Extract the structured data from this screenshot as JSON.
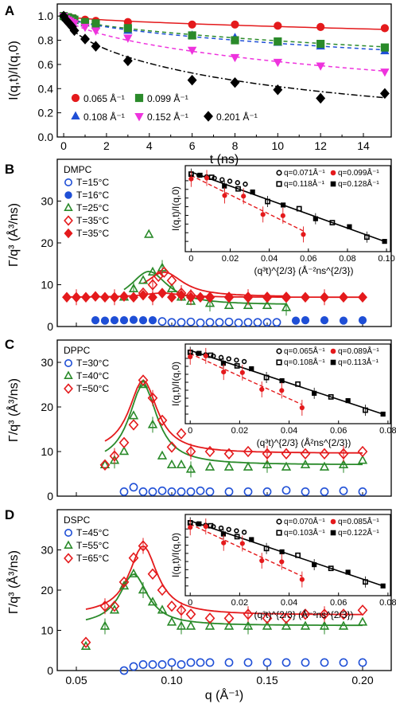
{
  "chart_data": [
    {
      "id": "A",
      "panel_label": "A",
      "type": "scatter",
      "xlabel": "t (ns)",
      "ylabel": "I(q,t)/I(q,0)",
      "xlim": [
        -0.3,
        15.3
      ],
      "ylim": [
        0,
        1.1
      ],
      "xticks": [
        0,
        2,
        4,
        6,
        8,
        10,
        12,
        14
      ],
      "yticks": [
        0,
        0.2,
        0.4,
        0.6,
        0.8,
        1.0
      ],
      "legend_placement": "bottom-left",
      "series": [
        {
          "name": "0.065 Å⁻¹",
          "color": "#e41a1c",
          "marker": "circle",
          "x": [
            0,
            0.1,
            0.2,
            0.3,
            0.4,
            0.5,
            1,
            1.5,
            3,
            6,
            8,
            10,
            12,
            15
          ],
          "y": [
            1.0,
            0.99,
            0.99,
            0.99,
            0.98,
            0.98,
            0.97,
            0.96,
            0.95,
            0.93,
            0.93,
            0.92,
            0.91,
            0.9
          ],
          "fit": "0.065 Å⁻¹"
        },
        {
          "name": "0.108 Å⁻¹",
          "color": "#1f4fd6",
          "marker": "triangle",
          "x": [
            0,
            0.1,
            0.2,
            0.3,
            0.4,
            0.5,
            1,
            1.5,
            3,
            6,
            8,
            10,
            12,
            15
          ],
          "y": [
            1.0,
            0.99,
            0.98,
            0.97,
            0.96,
            0.96,
            0.94,
            0.92,
            0.88,
            0.84,
            0.82,
            0.78,
            0.75,
            0.71
          ],
          "fit": "0.108 Å⁻¹"
        },
        {
          "name": "0.099 Å⁻¹",
          "color": "#2a8a2a",
          "marker": "square",
          "x": [
            0,
            0.1,
            0.2,
            0.3,
            0.4,
            0.5,
            1,
            1.5,
            3,
            6,
            8,
            10,
            12,
            15
          ],
          "y": [
            1.0,
            0.99,
            0.99,
            0.98,
            0.98,
            0.97,
            0.95,
            0.94,
            0.9,
            0.84,
            0.8,
            0.79,
            0.77,
            0.74
          ],
          "fit": "0.099 Å⁻¹"
        },
        {
          "name": "0.152 Å⁻¹",
          "color": "#ee33dd",
          "marker": "triangle-down",
          "x": [
            0,
            0.1,
            0.2,
            0.3,
            0.4,
            0.5,
            1,
            1.5,
            3,
            6,
            8,
            10,
            12,
            15
          ],
          "y": [
            1.0,
            0.98,
            0.97,
            0.96,
            0.95,
            0.94,
            0.91,
            0.88,
            0.82,
            0.72,
            0.66,
            0.62,
            0.59,
            0.54
          ],
          "fit": "0.152 Å⁻¹"
        },
        {
          "name": "0.201 Å⁻¹",
          "color": "#000000",
          "marker": "diamond",
          "x": [
            0,
            0.1,
            0.2,
            0.3,
            0.4,
            0.5,
            1,
            1.5,
            3,
            6,
            8,
            10,
            12,
            15
          ],
          "y": [
            1.0,
            0.97,
            0.95,
            0.93,
            0.91,
            0.88,
            0.81,
            0.75,
            0.63,
            0.47,
            0.45,
            0.39,
            0.32,
            0.36
          ],
          "fit": "0.201 Å⁻¹"
        }
      ],
      "fits": [
        {
          "series": "0.065 Å⁻¹",
          "color": "#e41a1c",
          "dash": "solid",
          "y": [
            1.0,
            0.9999,
            0.89
          ]
        },
        {
          "series": "0.099 Å⁻¹",
          "color": "#2a8a2a",
          "dash": "dash",
          "y": [
            1.0,
            0.9999,
            0.745
          ]
        },
        {
          "series": "0.108 Å⁻¹",
          "color": "#1f4fd6",
          "dash": "dash",
          "y": [
            1.0,
            0.9999,
            0.72
          ]
        },
        {
          "series": "0.152 Å⁻¹",
          "color": "#ee33dd",
          "dash": "dash",
          "y": [
            1.0,
            0.9999,
            0.545
          ]
        },
        {
          "series": "0.201 Å⁻¹",
          "color": "#000000",
          "dash": "dashdot",
          "y": [
            1.0,
            0.9999,
            0.325
          ]
        }
      ]
    },
    {
      "id": "B",
      "panel_label": "B",
      "title": "DMPC",
      "type": "scatter",
      "ylabel": "Γ/q³ (Å³/ns)",
      "xlim": [
        0.04,
        0.215
      ],
      "ylim": [
        0,
        40
      ],
      "yticks": [
        0,
        10,
        20,
        30
      ],
      "legend_placement": "top-left",
      "series": [
        {
          "name": "T=15°C",
          "color": "#1f4fd6",
          "marker": "circle-open",
          "x": [
            0.095,
            0.1,
            0.105,
            0.11,
            0.115,
            0.12,
            0.125,
            0.13,
            0.135,
            0.14,
            0.145,
            0.15,
            0.155
          ],
          "y": [
            1.2,
            1.0,
            1.0,
            1.1,
            0.9,
            1.0,
            1.0,
            1.1,
            0.9,
            1.0,
            1.0,
            1.0,
            1.0
          ]
        },
        {
          "name": "T=16°C",
          "color": "#1f4fd6",
          "marker": "circle",
          "x": [
            0.06,
            0.065,
            0.07,
            0.075,
            0.08,
            0.085,
            0.09,
            0.165,
            0.17,
            0.18,
            0.19,
            0.2
          ],
          "y": [
            1.5,
            1.4,
            1.5,
            1.5,
            1.6,
            1.5,
            1.5,
            1.4,
            1.5,
            1.5,
            1.4,
            1.5
          ]
        },
        {
          "name": "T=25°C",
          "color": "#2a8a2a",
          "marker": "triangle-open",
          "x": [
            0.075,
            0.08,
            0.085,
            0.088,
            0.09,
            0.095,
            0.1,
            0.105,
            0.11,
            0.12,
            0.13,
            0.14,
            0.15,
            0.16
          ],
          "y": [
            7,
            9,
            11,
            22,
            13,
            14,
            9,
            7,
            6,
            5.5,
            5,
            5,
            5,
            4.5
          ]
        },
        {
          "name": "T=35°C",
          "color": "#e41a1c",
          "marker": "diamond-open",
          "x": [
            0.085,
            0.09,
            0.093,
            0.096,
            0.1,
            0.105,
            0.11,
            0.12,
            0.13,
            0.14,
            0.15,
            0.16
          ],
          "y": [
            8,
            10,
            12,
            13,
            11,
            8,
            7.5,
            7,
            7,
            7,
            7,
            7
          ]
        },
        {
          "name": "T=35°C",
          "color": "#e41a1c",
          "marker": "diamond",
          "x": [
            0.045,
            0.05,
            0.055,
            0.06,
            0.065,
            0.07,
            0.075,
            0.08,
            0.085,
            0.09,
            0.095,
            0.1,
            0.105,
            0.11,
            0.115,
            0.12,
            0.13,
            0.14,
            0.15,
            0.16,
            0.17,
            0.18,
            0.19,
            0.2
          ],
          "y": [
            7,
            7,
            7,
            7.2,
            7,
            7,
            7.2,
            7,
            7.5,
            7,
            8,
            7,
            7.5,
            7,
            7,
            7,
            7,
            7,
            7,
            7,
            7,
            7,
            7,
            7
          ]
        }
      ],
      "inset": {
        "xlabel": "(q³t)^{2/3} (Å⁻²ns^{2/3})",
        "ylabel": "I(q,t)/I(q,0)",
        "xlim": [
          -0.003,
          0.102
        ],
        "xticks": [
          0,
          0.02,
          0.04,
          0.06,
          0.08,
          0.1
        ],
        "xtick_labels": [
          "0",
          "0.02",
          "0.04",
          "0.06",
          "0.08",
          "0.10"
        ],
        "legend": [
          {
            "name": "q=0.071Å⁻¹",
            "color": "#000000",
            "marker": "circle-open"
          },
          {
            "name": "q=0.099Å⁻¹",
            "color": "#e41a1c",
            "marker": "circle"
          },
          {
            "name": "q=0.118Å⁻¹",
            "color": "#000000",
            "marker": "square-open"
          },
          {
            "name": "q=0.128Å⁻¹",
            "color": "#000000",
            "marker": "square"
          }
        ]
      }
    },
    {
      "id": "C",
      "panel_label": "C",
      "title": "DPPC",
      "type": "scatter",
      "ylabel": "Γ/q³ (Å³/ns)",
      "xlim": [
        0.04,
        0.215
      ],
      "ylim": [
        0,
        35
      ],
      "yticks": [
        0,
        10,
        20,
        30
      ],
      "legend_placement": "top-left",
      "series": [
        {
          "name": "T=30°C",
          "color": "#1f4fd6",
          "marker": "circle-open",
          "x": [
            0.075,
            0.08,
            0.085,
            0.09,
            0.095,
            0.1,
            0.105,
            0.11,
            0.115,
            0.12,
            0.13,
            0.14,
            0.15,
            0.16,
            0.17,
            0.18,
            0.19,
            0.2
          ],
          "y": [
            1,
            2,
            1,
            1,
            1.2,
            1,
            1,
            1,
            1.2,
            1,
            1,
            1,
            1,
            1.3,
            1,
            1,
            1.2,
            1
          ]
        },
        {
          "name": "T=40°C",
          "color": "#2a8a2a",
          "marker": "triangle-open",
          "x": [
            0.065,
            0.07,
            0.075,
            0.08,
            0.085,
            0.09,
            0.095,
            0.1,
            0.105,
            0.11,
            0.12,
            0.13,
            0.14,
            0.15,
            0.16,
            0.17,
            0.18,
            0.19,
            0.2
          ],
          "y": [
            7,
            8,
            10,
            18,
            25,
            16,
            9,
            7,
            7,
            6,
            6.5,
            6.5,
            6.5,
            7,
            6.5,
            7,
            6.5,
            7,
            8
          ]
        },
        {
          "name": "T=50°C",
          "color": "#e41a1c",
          "marker": "diamond-open",
          "x": [
            0.065,
            0.07,
            0.075,
            0.08,
            0.085,
            0.09,
            0.095,
            0.1,
            0.105,
            0.11,
            0.12,
            0.13,
            0.14,
            0.15,
            0.16,
            0.17,
            0.18,
            0.19,
            0.2
          ],
          "y": [
            7,
            9,
            12,
            16,
            26,
            22,
            17,
            11,
            14,
            10,
            10,
            9.5,
            10,
            9.5,
            9.5,
            9.5,
            9.5,
            9.5,
            10
          ]
        }
      ],
      "inset": {
        "xlabel": "(q³t)^{2/3} (Å²ns^{2/3})",
        "ylabel": "I(q,t)/I(q,0)",
        "xlim": [
          -0.002,
          0.081
        ],
        "xticks": [
          0,
          0.02,
          0.04,
          0.06,
          0.08
        ],
        "xtick_labels": [
          "0",
          "0.02",
          "0.04",
          "0.06",
          "0.08"
        ],
        "legend": [
          {
            "name": "q=0.065Å⁻¹",
            "color": "#000000",
            "marker": "circle-open"
          },
          {
            "name": "q=0.089Å⁻¹",
            "color": "#e41a1c",
            "marker": "circle"
          },
          {
            "name": "q=0.108Å⁻¹",
            "color": "#000000",
            "marker": "square-open"
          },
          {
            "name": "q=0.113Å⁻¹",
            "color": "#000000",
            "marker": "square"
          }
        ]
      }
    },
    {
      "id": "D",
      "panel_label": "D",
      "title": "DSPC",
      "type": "scatter",
      "xlabel": "q (Å⁻¹)",
      "ylabel": "Γ/q³ (Å³/ns)",
      "xlim": [
        0.04,
        0.215
      ],
      "ylim": [
        0,
        40
      ],
      "xticks": [
        0.05,
        0.1,
        0.15,
        0.2
      ],
      "xtick_labels": [
        "0.05",
        "0.10",
        "0.15",
        "0.20"
      ],
      "yticks": [
        0,
        10,
        20,
        30
      ],
      "legend_placement": "top-left",
      "series": [
        {
          "name": "T=45°C",
          "color": "#1f4fd6",
          "marker": "circle-open",
          "x": [
            0.075,
            0.08,
            0.085,
            0.09,
            0.095,
            0.1,
            0.105,
            0.11,
            0.115,
            0.12,
            0.13,
            0.14,
            0.15,
            0.16,
            0.17,
            0.18,
            0.19,
            0.2
          ],
          "y": [
            0,
            1,
            1.5,
            1.5,
            1.5,
            2,
            1.5,
            2,
            2,
            2,
            2,
            2,
            2,
            2,
            2,
            2,
            2,
            2
          ]
        },
        {
          "name": "T=55°C",
          "color": "#2a8a2a",
          "marker": "triangle-open",
          "x": [
            0.055,
            0.065,
            0.07,
            0.075,
            0.08,
            0.085,
            0.09,
            0.095,
            0.1,
            0.105,
            0.11,
            0.12,
            0.13,
            0.14,
            0.15,
            0.16,
            0.17,
            0.18,
            0.19,
            0.2
          ],
          "y": [
            6,
            11,
            15,
            21,
            24,
            20,
            17,
            15,
            12,
            11,
            11,
            11,
            11,
            11,
            11,
            11,
            11,
            11,
            11,
            12
          ]
        },
        {
          "name": "T=65°C",
          "color": "#e41a1c",
          "marker": "diamond-open",
          "x": [
            0.055,
            0.065,
            0.07,
            0.075,
            0.08,
            0.085,
            0.09,
            0.095,
            0.1,
            0.105,
            0.11,
            0.12,
            0.13,
            0.14,
            0.15,
            0.16,
            0.17,
            0.18,
            0.19,
            0.2
          ],
          "y": [
            7,
            16,
            16,
            22,
            28,
            31,
            24,
            20,
            16,
            15,
            14,
            13,
            13,
            14,
            13,
            13,
            14,
            14,
            14,
            15
          ]
        }
      ],
      "inset": {
        "xlabel": "(q³t)^{2/3} (Å⁻²ns^{2/3})",
        "ylabel": "I(q,t)/I(q,0)",
        "xlim": [
          -0.002,
          0.081
        ],
        "xticks": [
          0,
          0.02,
          0.04,
          0.06,
          0.08
        ],
        "xtick_labels": [
          "0",
          "0.02",
          "0.04",
          "0.06",
          "0.08"
        ],
        "legend": [
          {
            "name": "q=0.070Å⁻¹",
            "color": "#000000",
            "marker": "circle-open"
          },
          {
            "name": "q=0.085Å⁻¹",
            "color": "#e41a1c",
            "marker": "circle"
          },
          {
            "name": "q=0.103Å⁻¹",
            "color": "#000000",
            "marker": "square-open"
          },
          {
            "name": "q=0.122Å⁻¹",
            "color": "#000000",
            "marker": "square"
          }
        ]
      }
    }
  ]
}
